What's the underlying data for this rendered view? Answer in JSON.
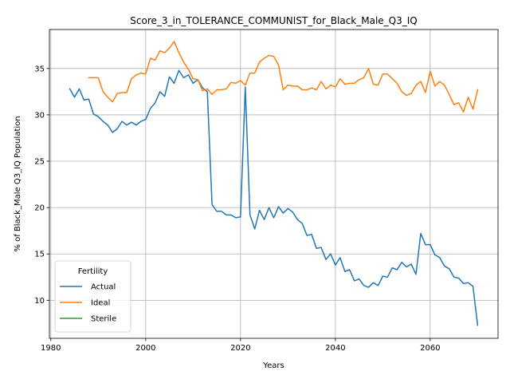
{
  "chart_data": {
    "type": "line",
    "title": "Score_3_in_TOLERANCE_COMMUNIST_for_Black_Male_Q3_IQ",
    "xlabel": "Years",
    "ylabel": "% of Black_Male Q3_IQ Population",
    "xlim": [
      1979.7,
      2074.3
    ],
    "ylim": [
      5.9,
      39.2
    ],
    "xticks": [
      1980,
      2000,
      2020,
      2040,
      2060
    ],
    "yticks": [
      10,
      15,
      20,
      25,
      30,
      35
    ],
    "grid": true,
    "legend": {
      "title": "Fertility",
      "placement": "lower-left",
      "entries": [
        "Actual",
        "Ideal",
        "Sterile"
      ]
    },
    "colors": {
      "Actual": "#1f77b4",
      "Ideal": "#ff7f0e",
      "Sterile": "#2ca02c"
    },
    "series": [
      {
        "name": "Actual",
        "x": [
          1984,
          1985,
          1986,
          1987,
          1988,
          1989,
          1990,
          1991,
          1992,
          1993,
          1994,
          1995,
          1996,
          1997,
          1998,
          1999,
          2000,
          2001,
          2002,
          2003,
          2004,
          2005,
          2006,
          2007,
          2008,
          2009,
          2010,
          2011,
          2012,
          2013,
          2014,
          2015,
          2016,
          2017,
          2018,
          2019,
          2020,
          2021,
          2022,
          2023,
          2024,
          2025,
          2026,
          2027,
          2028,
          2029,
          2030,
          2031,
          2032,
          2033,
          2034,
          2035,
          2036,
          2037,
          2038,
          2039,
          2040,
          2041,
          2042,
          2043,
          2044,
          2045,
          2046,
          2047,
          2048,
          2049,
          2050,
          2051,
          2052,
          2053,
          2054,
          2055,
          2056,
          2057,
          2058,
          2059,
          2060,
          2061,
          2062,
          2063,
          2064,
          2065,
          2066,
          2067,
          2068,
          2069,
          2070
        ],
        "values": [
          32.8,
          31.9,
          32.8,
          31.6,
          31.7,
          30.1,
          29.8,
          29.3,
          28.9,
          28.1,
          28.5,
          29.3,
          28.9,
          29.2,
          28.9,
          29.3,
          29.5,
          30.7,
          31.3,
          32.5,
          32.0,
          34.1,
          33.4,
          34.8,
          34.0,
          34.3,
          33.4,
          33.8,
          32.9,
          32.5,
          20.3,
          19.6,
          19.6,
          19.2,
          19.2,
          18.9,
          19.0,
          33.0,
          19.2,
          17.7,
          19.7,
          18.7,
          20.0,
          18.9,
          20.1,
          19.4,
          19.9,
          19.5,
          18.7,
          18.3,
          17.0,
          17.1,
          15.6,
          15.7,
          14.4,
          15.0,
          13.8,
          14.6,
          13.1,
          13.3,
          12.1,
          12.3,
          11.6,
          11.4,
          11.9,
          11.6,
          12.6,
          12.5,
          13.5,
          13.3,
          14.1,
          13.6,
          13.9,
          12.8,
          17.2,
          16.0,
          16.0,
          14.9,
          14.6,
          13.7,
          13.4,
          12.5,
          12.4,
          11.8,
          11.9,
          11.5,
          7.3
        ]
      },
      {
        "name": "Ideal",
        "x": [
          1988,
          1989,
          1990,
          1991,
          1992,
          1993,
          1994,
          1995,
          1996,
          1997,
          1998,
          1999,
          2000,
          2001,
          2002,
          2003,
          2004,
          2005,
          2006,
          2007,
          2008,
          2009,
          2010,
          2011,
          2012,
          2013,
          2014,
          2015,
          2016,
          2017,
          2018,
          2019,
          2020,
          2021,
          2022,
          2023,
          2024,
          2025,
          2026,
          2027,
          2028,
          2029,
          2030,
          2031,
          2032,
          2033,
          2034,
          2035,
          2036,
          2037,
          2038,
          2039,
          2040,
          2041,
          2042,
          2043,
          2044,
          2045,
          2046,
          2047,
          2048,
          2049,
          2050,
          2051,
          2052,
          2053,
          2054,
          2055,
          2056,
          2057,
          2058,
          2059,
          2060,
          2061,
          2062,
          2063,
          2064,
          2065,
          2066,
          2067,
          2068,
          2069,
          2070
        ],
        "values": [
          34.0,
          34.0,
          34.0,
          32.5,
          31.9,
          31.4,
          32.3,
          32.4,
          32.4,
          33.9,
          34.3,
          34.5,
          34.4,
          36.1,
          35.9,
          36.9,
          36.7,
          37.2,
          37.9,
          36.7,
          35.7,
          34.9,
          33.9,
          33.8,
          32.6,
          32.8,
          32.2,
          32.7,
          32.7,
          32.8,
          33.5,
          33.4,
          33.7,
          33.2,
          34.5,
          34.5,
          35.7,
          36.1,
          36.4,
          36.3,
          35.4,
          32.7,
          33.2,
          33.1,
          33.1,
          32.7,
          32.7,
          32.9,
          32.7,
          33.6,
          32.8,
          33.2,
          33.0,
          33.9,
          33.3,
          33.4,
          33.4,
          33.8,
          34.0,
          35.0,
          33.3,
          33.2,
          34.4,
          34.4,
          33.9,
          33.4,
          32.5,
          32.1,
          32.3,
          33.2,
          33.6,
          32.4,
          34.7,
          33.1,
          33.6,
          33.2,
          32.2,
          31.1,
          31.3,
          30.3,
          31.9,
          30.6,
          32.7
        ]
      },
      {
        "name": "Sterile",
        "x": [],
        "values": []
      }
    ]
  }
}
